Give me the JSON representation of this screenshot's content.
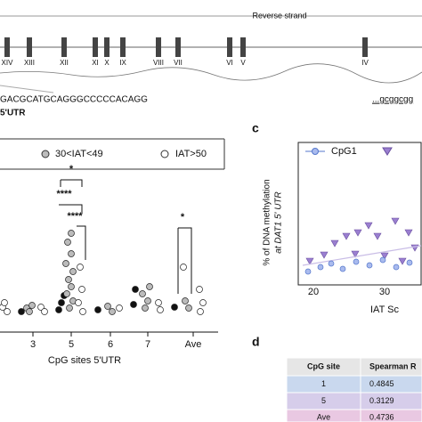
{
  "gene_track": {
    "strand_label": "Reverse strand",
    "exons": [
      "XIV",
      "XIII",
      "XII",
      "XI",
      "X",
      "IX",
      "VIII",
      "VII",
      "VI",
      "V",
      "IV"
    ]
  },
  "sequence": {
    "left": "GACGCATGCAGGGCCCCCACAGG",
    "left_label": "5'UTR",
    "right": "...gcggcgg"
  },
  "panel_b": {
    "legend": [
      "30<IAT<49",
      "IAT>50"
    ],
    "categories": [
      "3",
      "5",
      "6",
      "7",
      "Ave"
    ],
    "x_axis_title": "CpG sites 5'UTR",
    "significance": [
      "*",
      "****",
      "****",
      "*"
    ]
  },
  "panel_c": {
    "letter": "c",
    "legend": [
      "CpG1"
    ],
    "y_axis_title": [
      "% of DNA methylation",
      "at DAT1 5' UTR"
    ],
    "x_ticks": [
      "20",
      "30"
    ],
    "x_axis_title": "IAT Sc"
  },
  "panel_d": {
    "letter": "d",
    "table": {
      "header": [
        "CpG site",
        "Spearman R"
      ],
      "rows": [
        [
          "1",
          "0.4845"
        ],
        [
          "5",
          "0.3129"
        ],
        [
          "Ave",
          "0.4736"
        ]
      ]
    }
  }
}
